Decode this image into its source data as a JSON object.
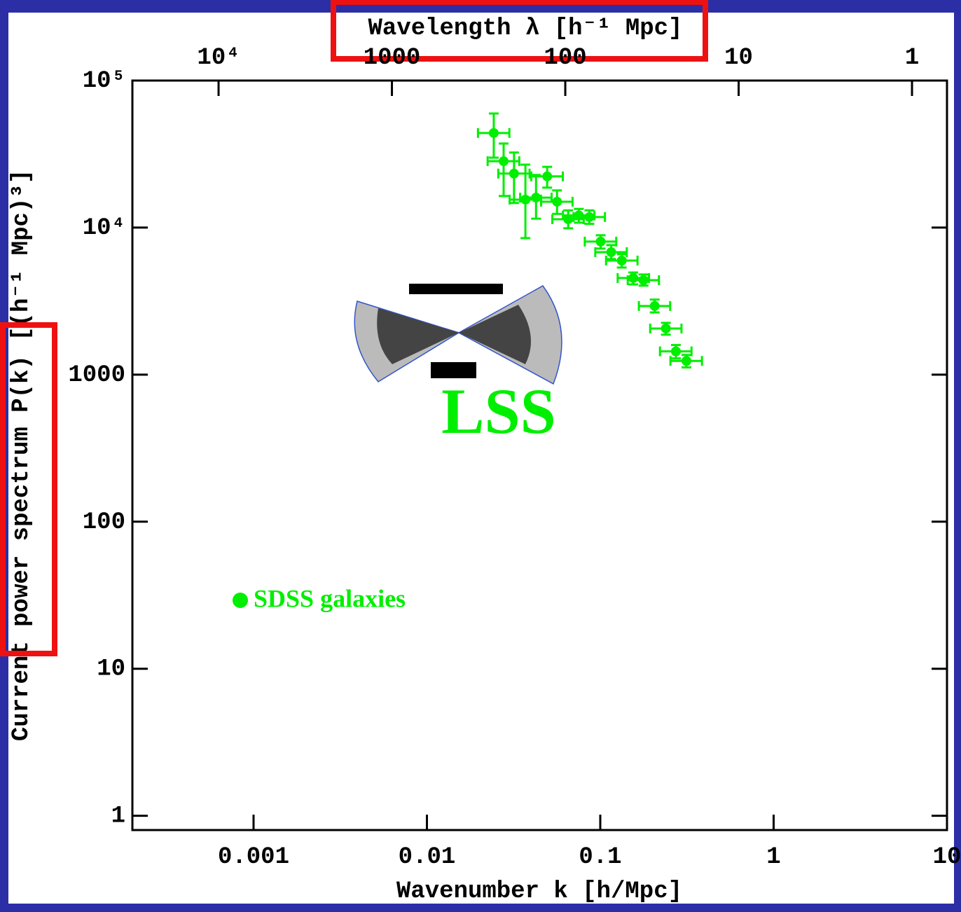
{
  "chart_data": {
    "type": "scatter",
    "xlabel": "Wavenumber k [h/Mpc]",
    "x2label": "Wavelength λ [h⁻¹ Mpc]",
    "ylabel": "Current power spectrum P(k) [(h⁻¹ Mpc)³]",
    "annotation": "LSS",
    "xscale": "log",
    "yscale": "log",
    "xlim": [
      0.0002,
      10
    ],
    "ylim": [
      0.8,
      100000
    ],
    "xticks": [
      0.001,
      0.01,
      0.1,
      1,
      10
    ],
    "x2ticks": [
      {
        "value": 10000,
        "label": "10⁴"
      },
      1000,
      100,
      10,
      1
    ],
    "yticks": [
      1,
      10,
      100,
      1000,
      {
        "value": 10000,
        "label": "10⁴"
      },
      {
        "value": 100000,
        "label": "10⁵"
      }
    ],
    "series": [
      {
        "name": "SDSS galaxies",
        "color": "#00ee00",
        "x": [
          0.0243,
          0.0277,
          0.0318,
          0.037,
          0.0426,
          0.0494,
          0.0563,
          0.0653,
          0.0752,
          0.0865,
          0.1005,
          0.1156,
          0.133,
          0.155,
          0.1775,
          0.206,
          0.239,
          0.273,
          0.314
        ],
        "x_low": [
          0.0197,
          0.0224,
          0.0258,
          0.03,
          0.0345,
          0.04,
          0.0456,
          0.0529,
          0.0609,
          0.0701,
          0.0814,
          0.0936,
          0.108,
          0.126,
          0.144,
          0.167,
          0.194,
          0.221,
          0.254
        ],
        "x_high": [
          0.0299,
          0.0341,
          0.0391,
          0.0455,
          0.0524,
          0.0608,
          0.0692,
          0.0803,
          0.0925,
          0.1064,
          0.1236,
          0.1422,
          0.164,
          0.191,
          0.218,
          0.253,
          0.294,
          0.336,
          0.386
        ],
        "values": [
          44000,
          28300,
          23300,
          15500,
          16000,
          22300,
          15000,
          11400,
          12100,
          11800,
          8030,
          6810,
          5970,
          4540,
          4390,
          2930,
          2060,
          1440,
          1240
        ],
        "y_low": [
          29900,
          16400,
          14700,
          8480,
          11500,
          18700,
          12400,
          9890,
          10800,
          10600,
          7200,
          6110,
          5350,
          4110,
          4030,
          2650,
          1870,
          1290,
          1120
        ],
        "y_high": [
          59700,
          37300,
          32400,
          26800,
          22800,
          25900,
          17900,
          13100,
          13400,
          13100,
          8870,
          7600,
          6590,
          4950,
          4800,
          3240,
          2250,
          1590,
          1360
        ]
      }
    ]
  }
}
